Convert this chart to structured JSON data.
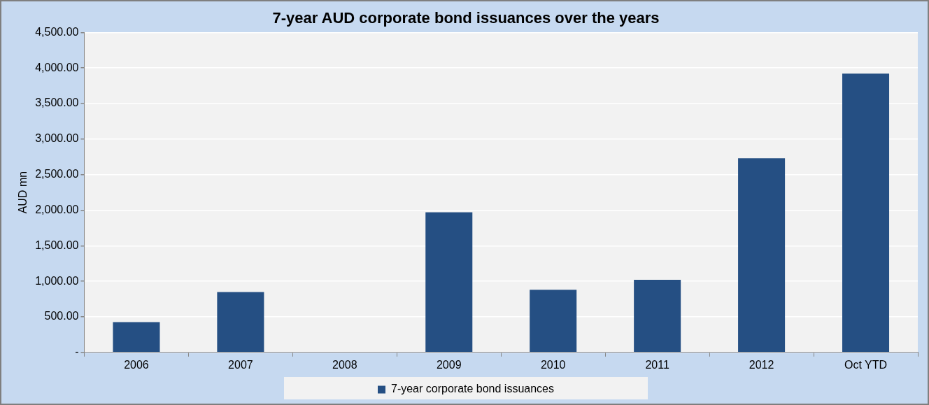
{
  "chart_data": {
    "type": "bar",
    "title": "7-year AUD corporate bond issuances over the years",
    "ylabel": "AUD mn",
    "categories": [
      "2006",
      "2007",
      "2008",
      "2009",
      "2010",
      "2011",
      "2012",
      "Oct YTD"
    ],
    "series": [
      {
        "name": "7-year corporate bond issuances",
        "color": "#254f83",
        "values": [
          425,
          850,
          0,
          1970,
          880,
          1020,
          2730,
          3920
        ]
      }
    ],
    "ylim": [
      0,
      4500
    ],
    "yticks": [
      {
        "value": 0,
        "label": "-"
      },
      {
        "value": 500,
        "label": "500.00"
      },
      {
        "value": 1000,
        "label": "1,000.00"
      },
      {
        "value": 1500,
        "label": "1,500.00"
      },
      {
        "value": 2000,
        "label": "2,000.00"
      },
      {
        "value": 2500,
        "label": "2,500.00"
      },
      {
        "value": 3000,
        "label": "3,000.00"
      },
      {
        "value": 3500,
        "label": "3,500.00"
      },
      {
        "value": 4000,
        "label": "4,000.00"
      },
      {
        "value": 4500,
        "label": "4,500.00"
      }
    ],
    "grid": "y",
    "legend": "bottom"
  }
}
